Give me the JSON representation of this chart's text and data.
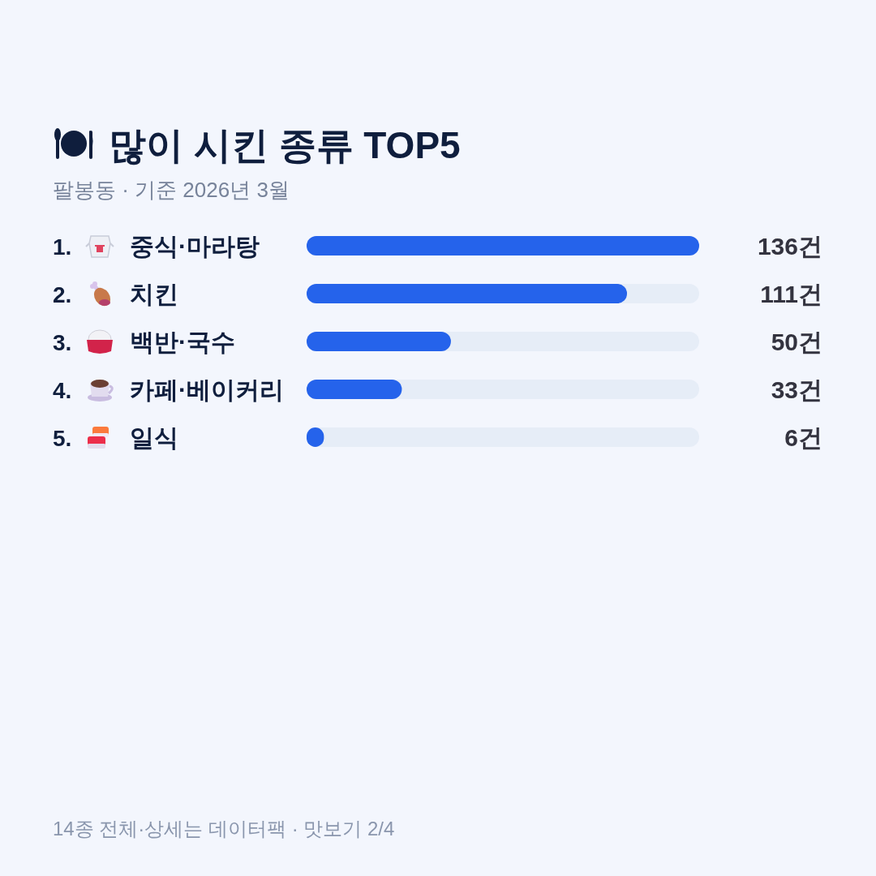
{
  "chart_data": {
    "type": "bar",
    "orientation": "horizontal",
    "title": "많이 시킨 종류 TOP5",
    "subtitle": "팔봉동 · 기준 2026년 3월",
    "categories": [
      "중식·마라탕",
      "치킨",
      "백반·국수",
      "카페·베이커리",
      "일식"
    ],
    "values": [
      136,
      111,
      50,
      33,
      6
    ],
    "color": "#2563eb",
    "xlim": [
      0,
      136
    ],
    "tick_labels": "y",
    "value_labels": [
      "136건",
      "111건",
      "50건",
      "33건",
      "6건"
    ],
    "annotations": [
      "1.",
      "2.",
      "3.",
      "4.",
      "5.",
      "14종 전체·상세는 데이터팩 · 맛보기 2/4"
    ]
  }
}
